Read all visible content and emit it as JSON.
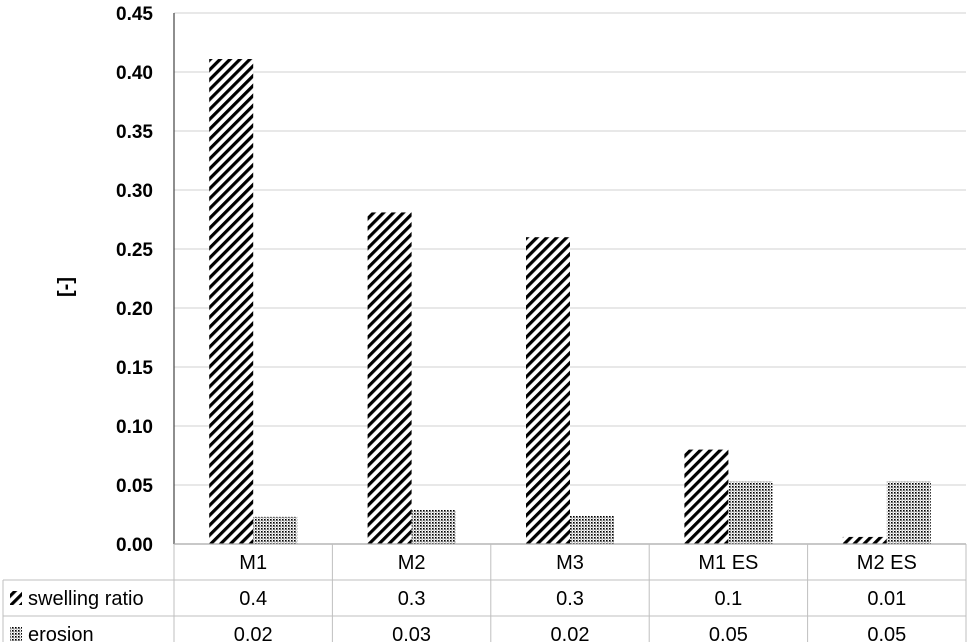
{
  "chart_data": {
    "type": "bar",
    "title": "",
    "xlabel": "",
    "ylabel": "[-]",
    "ylim": [
      0,
      0.45
    ],
    "ytick_step": 0.05,
    "ytick_labels": [
      "0.00",
      "0.05",
      "0.10",
      "0.15",
      "0.20",
      "0.25",
      "0.30",
      "0.35",
      "0.40",
      "0.45"
    ],
    "grid": true,
    "categories": [
      "M1",
      "M2",
      "M3",
      "M1 ES",
      "M2 ES"
    ],
    "series": [
      {
        "name": "swelling ratio",
        "pattern": "diagonal-hatch",
        "values": [
          0.411,
          0.281,
          0.26,
          0.08,
          0.006
        ],
        "table_labels": [
          "0.4",
          "0.3",
          "0.3",
          "0.1",
          "0.01"
        ]
      },
      {
        "name": "erosion",
        "pattern": "dotted",
        "values": [
          0.023,
          0.029,
          0.024,
          0.053,
          0.053
        ],
        "table_labels": [
          "0.02",
          "0.03",
          "0.02",
          "0.05",
          "0.05"
        ]
      }
    ],
    "legend": "data-table-left",
    "colors": {
      "bar": "#000000",
      "grid": "#d0d0d0",
      "table_border": "#bfbfbf"
    }
  }
}
